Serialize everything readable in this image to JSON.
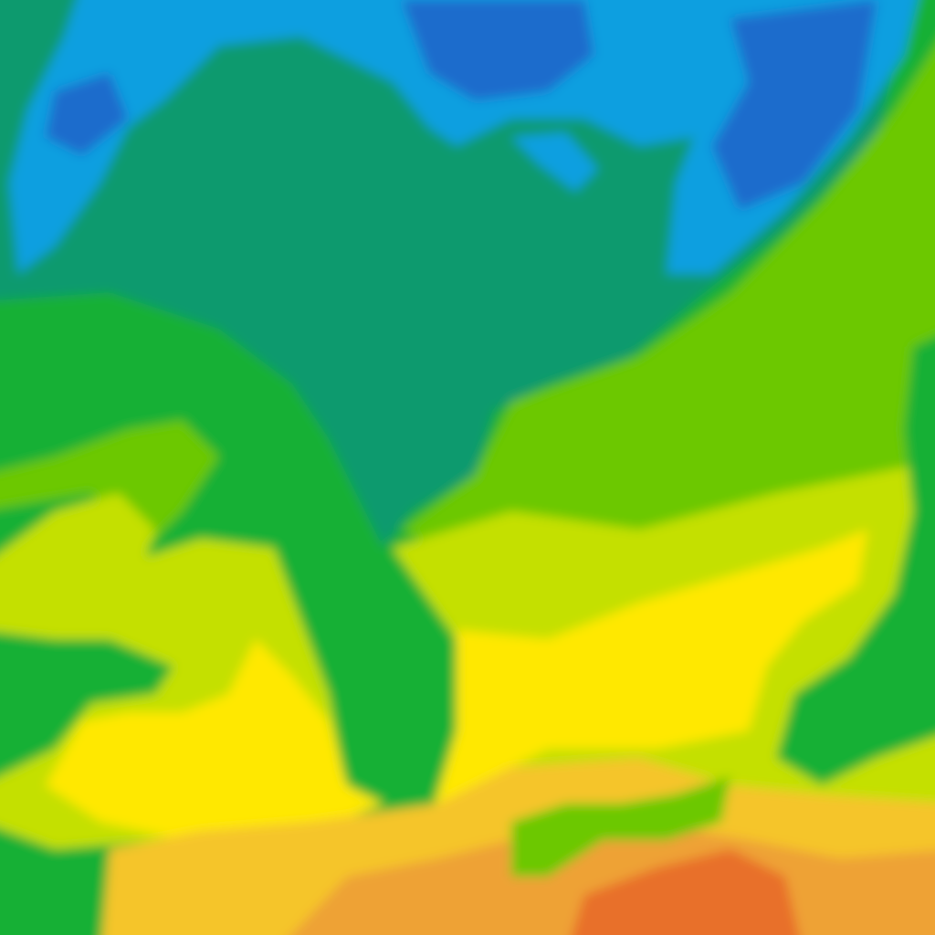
{
  "map": {
    "kind": "temperature-field",
    "palette": {
      "deep_blue": "#1c6ccc",
      "blue": "#0a9fe0",
      "teal": "#0f9a6e",
      "green": "#13b034",
      "lime": "#6cc800",
      "yellow_green": "#c4e000",
      "yellow": "#ffe800",
      "amber": "#f5c52a",
      "orange": "#eea234",
      "dark_orange": "#e8702a"
    }
  }
}
